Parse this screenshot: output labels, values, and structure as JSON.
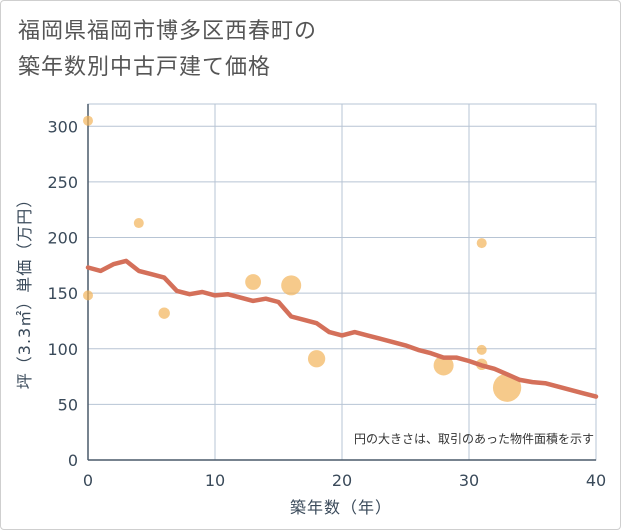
{
  "title_lines": [
    "福岡県福岡市博多区西春町の",
    "築年数別中古戸建て価格"
  ],
  "colors": {
    "bubble": "#f2b45a",
    "line": "#d4705a",
    "grid": "#b7c4d4",
    "text": "#3a4a5a"
  },
  "chart_data": {
    "type": "scatter",
    "xlabel": "築年数（年）",
    "ylabel": "坪（3.3㎡）単価（万円）",
    "xlim": [
      0,
      40
    ],
    "ylim": [
      0,
      320
    ],
    "xticks": [
      0,
      10,
      20,
      30,
      40
    ],
    "yticks": [
      0,
      50,
      100,
      150,
      200,
      250,
      300
    ],
    "note": "円の大きさは、取引のあった物件面積を示す",
    "points": [
      {
        "x": 0,
        "y": 305,
        "size": 1
      },
      {
        "x": 0,
        "y": 148,
        "size": 1
      },
      {
        "x": 4,
        "y": 213,
        "size": 1
      },
      {
        "x": 6,
        "y": 132,
        "size": 1.3
      },
      {
        "x": 13,
        "y": 160,
        "size": 2.5
      },
      {
        "x": 16,
        "y": 157,
        "size": 4
      },
      {
        "x": 18,
        "y": 91,
        "size": 3
      },
      {
        "x": 28,
        "y": 85,
        "size": 4
      },
      {
        "x": 31,
        "y": 195,
        "size": 1
      },
      {
        "x": 31,
        "y": 99,
        "size": 1
      },
      {
        "x": 31,
        "y": 86,
        "size": 1.3
      },
      {
        "x": 33,
        "y": 65,
        "size": 8
      }
    ],
    "trend": {
      "x": [
        0,
        1,
        2,
        3,
        4,
        5,
        6,
        7,
        8,
        9,
        10,
        11,
        12,
        13,
        14,
        15,
        16,
        17,
        18,
        19,
        20,
        21,
        22,
        23,
        24,
        25,
        26,
        27,
        28,
        29,
        30,
        31,
        32,
        33,
        34,
        35,
        36,
        37,
        38,
        39,
        40
      ],
      "y": [
        173,
        170,
        176,
        179,
        170,
        167,
        164,
        152,
        149,
        151,
        148,
        149,
        146,
        143,
        145,
        142,
        129,
        126,
        123,
        115,
        112,
        115,
        112,
        109,
        106,
        103,
        99,
        96,
        92,
        92,
        89,
        85,
        82,
        77,
        72,
        70,
        69,
        66,
        63,
        60,
        57
      ]
    }
  }
}
